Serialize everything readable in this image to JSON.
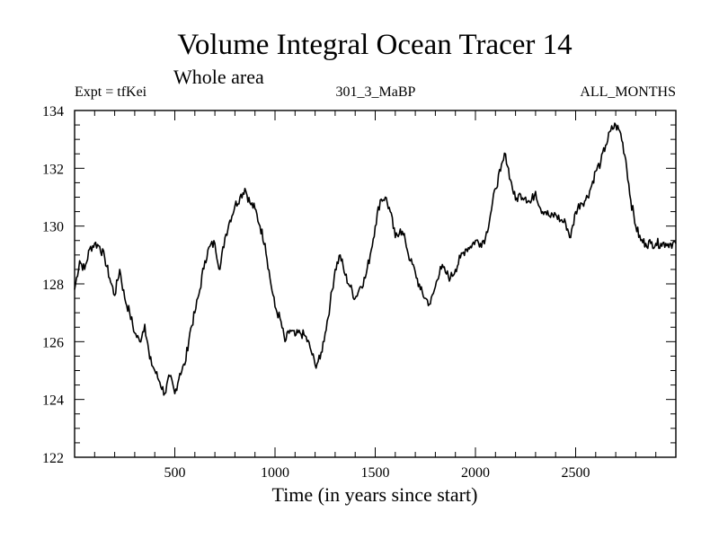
{
  "chart_data": {
    "type": "line",
    "title": "Volume Integral Ocean Tracer 14",
    "subtitle": "Whole area",
    "left_label": "Expt = tfKei",
    "center_label": "301_3_MaBP",
    "right_label": "ALL_MONTHS",
    "xlabel": "Time (in years since start)",
    "ylabel": "",
    "xlim": [
      0,
      3000
    ],
    "ylim": [
      122,
      134
    ],
    "x_ticks": [
      500,
      1000,
      1500,
      2000,
      2500
    ],
    "y_ticks": [
      122,
      124,
      126,
      128,
      130,
      132,
      134
    ],
    "x_tick_labels": [
      "500",
      "1000",
      "1500",
      "2000",
      "2500"
    ],
    "y_tick_labels": [
      "122",
      "124",
      "126",
      "128",
      "130",
      "132",
      "134"
    ],
    "grid": false,
    "line_color": "#000000",
    "x": [
      0,
      25,
      50,
      75,
      100,
      125,
      150,
      175,
      200,
      225,
      250,
      275,
      300,
      325,
      350,
      375,
      400,
      425,
      450,
      475,
      500,
      525,
      550,
      575,
      600,
      625,
      650,
      675,
      700,
      725,
      750,
      775,
      800,
      825,
      850,
      875,
      900,
      925,
      950,
      975,
      1000,
      1025,
      1050,
      1075,
      1100,
      1125,
      1150,
      1175,
      1200,
      1225,
      1250,
      1275,
      1300,
      1325,
      1350,
      1375,
      1400,
      1425,
      1450,
      1475,
      1500,
      1525,
      1550,
      1575,
      1600,
      1625,
      1650,
      1675,
      1700,
      1725,
      1750,
      1775,
      1800,
      1825,
      1850,
      1875,
      1900,
      1925,
      1950,
      1975,
      2000,
      2025,
      2050,
      2075,
      2100,
      2125,
      2150,
      2175,
      2200,
      2225,
      2250,
      2275,
      2300,
      2325,
      2350,
      2375,
      2400,
      2425,
      2450,
      2475,
      2500,
      2525,
      2550,
      2575,
      2600,
      2625,
      2650,
      2675,
      2700,
      2725,
      2750,
      2775,
      2800,
      2825,
      2850,
      2875,
      2900,
      2925,
      2950,
      2975,
      3000
    ],
    "y": [
      127.8,
      128.8,
      128.5,
      129.2,
      129.4,
      129.3,
      128.9,
      128.2,
      127.6,
      128.5,
      127.5,
      127.0,
      126.3,
      126.0,
      126.6,
      125.4,
      125.0,
      124.6,
      124.2,
      124.8,
      124.2,
      124.9,
      125.2,
      126.3,
      127.0,
      127.8,
      128.8,
      129.3,
      129.4,
      128.5,
      129.6,
      130.2,
      130.7,
      131.0,
      131.3,
      130.8,
      130.6,
      130.0,
      129.4,
      128.2,
      127.2,
      126.8,
      126.0,
      126.4,
      126.2,
      126.3,
      126.2,
      125.8,
      125.2,
      125.4,
      126.3,
      127.3,
      128.5,
      129.0,
      128.3,
      127.9,
      127.5,
      127.9,
      128.2,
      129.0,
      130.0,
      130.9,
      131.0,
      130.5,
      129.6,
      129.9,
      129.5,
      128.8,
      128.4,
      127.8,
      127.5,
      127.3,
      127.9,
      128.6,
      128.4,
      128.2,
      128.5,
      128.9,
      129.2,
      129.3,
      129.5,
      129.4,
      129.6,
      130.4,
      131.3,
      131.9,
      132.5,
      131.6,
      130.9,
      131.1,
      131.0,
      130.8,
      131.2,
      130.6,
      130.5,
      130.3,
      130.4,
      130.2,
      130.1,
      129.6,
      130.5,
      130.8,
      130.9,
      131.3,
      131.9,
      132.2,
      132.8,
      133.3,
      133.5,
      133.2,
      132.3,
      130.9,
      130.0,
      129.5,
      129.4,
      129.4,
      129.4,
      129.4,
      129.4,
      129.4,
      129.4
    ]
  }
}
